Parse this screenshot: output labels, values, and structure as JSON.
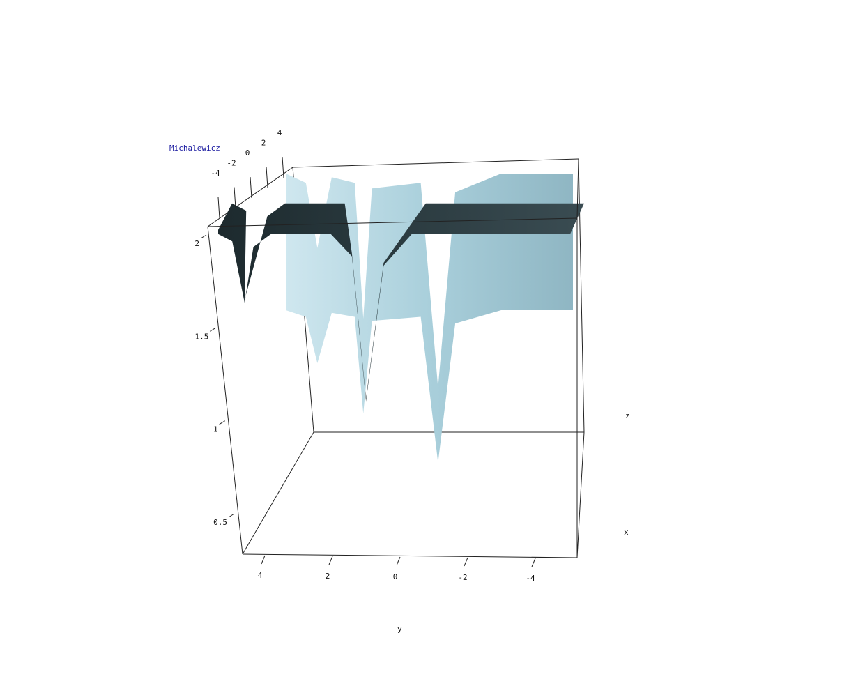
{
  "chart_data": {
    "type": "surface",
    "title": "Michalewicz",
    "xlabel": "x",
    "ylabel": "y",
    "zlabel": "z",
    "x_ticks": [
      "-4",
      "-2",
      "0",
      "2",
      "4"
    ],
    "y_ticks": [
      "4",
      "2",
      "0",
      "-2",
      "-4"
    ],
    "z_ticks": [
      "2",
      "1.5",
      "1",
      "0.5"
    ],
    "xlim": [
      -5,
      5
    ],
    "ylim": [
      -5,
      5
    ],
    "zlim": [
      0.4,
      2.1
    ],
    "grid": false,
    "colors": {
      "front_surface": "#2b3b40",
      "back_surface": "#a9cfdb",
      "title": "#1a1aa0"
    },
    "series": [
      {
        "profile": [
          {
            "y": 5.0,
            "z": 2.02
          },
          {
            "y": 4.6,
            "z": 1.98
          },
          {
            "y": 4.25,
            "z": 1.65
          },
          {
            "y": 4.0,
            "z": 1.95
          },
          {
            "y": 3.5,
            "z": 2.02
          },
          {
            "y": 1.8,
            "z": 2.02
          },
          {
            "y": 1.2,
            "z": 1.9
          },
          {
            "y": 0.8,
            "z": 1.12
          },
          {
            "y": 0.3,
            "z": 1.85
          },
          {
            "y": -0.5,
            "z": 2.02
          },
          {
            "y": -5.0,
            "z": 2.02
          }
        ]
      },
      {
        "profile": [
          {
            "y": 5.0,
            "z": 2.0
          },
          {
            "y": 4.3,
            "z": 1.95
          },
          {
            "y": 3.9,
            "z": 1.6
          },
          {
            "y": 3.4,
            "z": 1.98
          },
          {
            "y": 2.6,
            "z": 1.95
          },
          {
            "y": 2.3,
            "z": 1.22
          },
          {
            "y": 2.0,
            "z": 1.92
          },
          {
            "y": 0.3,
            "z": 1.95
          },
          {
            "y": -0.3,
            "z": 0.85
          },
          {
            "y": -0.9,
            "z": 1.9
          },
          {
            "y": -2.5,
            "z": 2.0
          },
          {
            "y": -5.0,
            "z": 2.0
          }
        ]
      }
    ]
  }
}
